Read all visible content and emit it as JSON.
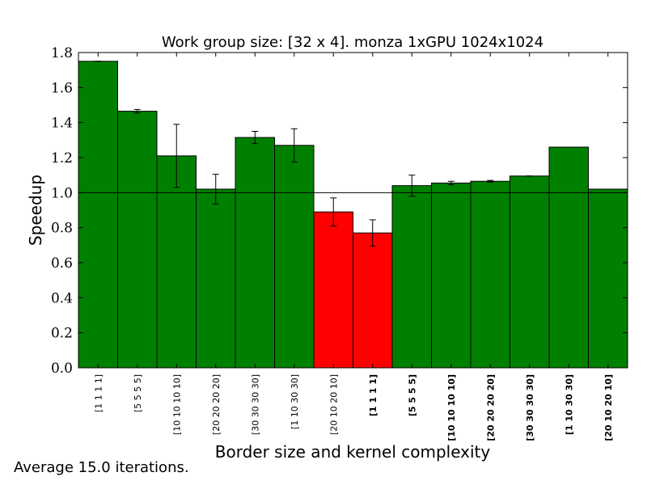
{
  "chart_data": {
    "type": "bar",
    "title": "Work group size: [32 x 4]. monza 1xGPU 1024x1024",
    "xlabel": "Border size and kernel complexity",
    "ylabel": "Speedup",
    "ylim": [
      0.0,
      1.8
    ],
    "yticks": [
      "0.0",
      "0.2",
      "0.4",
      "0.6",
      "0.8",
      "1.0",
      "1.2",
      "1.4",
      "1.6",
      "1.8"
    ],
    "reference_line": 1.0,
    "grid": false,
    "categories": [
      "[1 1 1 1]",
      "[5 5 5 5]",
      "[10 10 10 10]",
      "[20 20 20 20]",
      "[30 30 30 30]",
      "[1 10 30 30]",
      "[20 10 20 10]",
      "[1 1 1 1]",
      "[5 5 5 5]",
      "[10 10 10 10]",
      "[20 20 20 20]",
      "[30 30 30 30]",
      "[1 10 30 30]",
      "[20 10 20 10]"
    ],
    "category_bold": [
      false,
      false,
      false,
      false,
      false,
      false,
      false,
      true,
      true,
      true,
      true,
      true,
      true,
      true
    ],
    "values": [
      1.75,
      1.465,
      1.21,
      1.02,
      1.315,
      1.27,
      0.89,
      0.77,
      1.04,
      1.055,
      1.065,
      1.095,
      1.26,
      1.02
    ],
    "errors": [
      0.0,
      0.01,
      0.18,
      0.085,
      0.035,
      0.095,
      0.08,
      0.075,
      0.06,
      0.01,
      0.005,
      0.0,
      0.0,
      0.0
    ],
    "colors": {
      "above": "#008000",
      "below": "#ff0000",
      "edge": "#000000"
    },
    "footnote": "Average 15.0 iterations."
  }
}
